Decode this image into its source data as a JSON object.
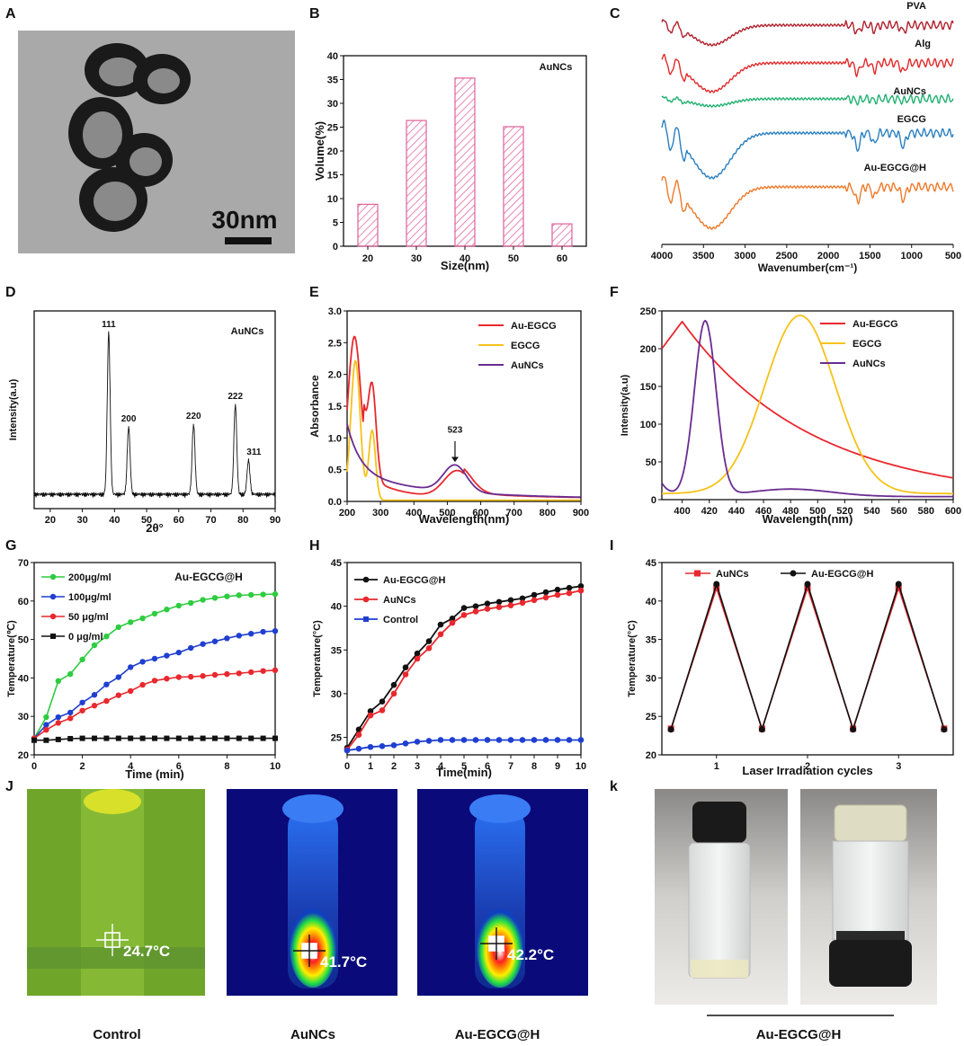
{
  "panel_letters": [
    "A",
    "B",
    "C",
    "D",
    "E",
    "F",
    "G",
    "H",
    "I",
    "J",
    "k"
  ],
  "colors": {
    "pink": "#e0609a",
    "red": "#e8282e",
    "yellow": "#f5c21b",
    "purple": "#6a2c91",
    "green": "#2ecc40",
    "blue": "#1f3fd0",
    "black": "#111111",
    "pva": "#b0202c",
    "alg": "#e02a2a",
    "ftir_green": "#20b070",
    "ftir_blue": "#2a7fc0",
    "orange": "#ee7a2a"
  },
  "panel_a": {
    "scalebar_label": "30nm"
  },
  "panel_b": {
    "type": "bar",
    "label": "AuNCs",
    "categories": [
      "20",
      "30",
      "40",
      "50",
      "60"
    ],
    "values": [
      8.8,
      26.4,
      35.3,
      25.1,
      4.7
    ],
    "xlabel": "Size(nm)",
    "ylabel": "Volume(%)",
    "ylim": [
      0,
      40
    ],
    "yticks": [
      0,
      5,
      10,
      15,
      20,
      25,
      30,
      35,
      40
    ]
  },
  "panel_c": {
    "type": "line",
    "xlabel": "Wavenumber(cm⁻¹)",
    "xlim": [
      4000,
      500
    ],
    "xticks": [
      4000,
      3500,
      3000,
      2500,
      2000,
      1500,
      1000,
      500
    ],
    "series": [
      "PVA",
      "Alg",
      "AuNCs",
      "EGCG",
      "Au-EGCG@H"
    ]
  },
  "panel_d": {
    "type": "line",
    "label": "AuNCs",
    "xlabel": "2θ°",
    "ylabel": "Intensity(a.u)",
    "xlim": [
      15,
      90
    ],
    "xticks": [
      20,
      30,
      40,
      50,
      60,
      70,
      80,
      90
    ],
    "peaks": [
      {
        "x": 38.2,
        "label": "111"
      },
      {
        "x": 44.4,
        "label": "200"
      },
      {
        "x": 64.6,
        "label": "220"
      },
      {
        "x": 77.6,
        "label": "222"
      },
      {
        "x": 81.7,
        "label": "311"
      }
    ]
  },
  "panel_e": {
    "type": "line",
    "xlabel": "Wavelength(nm)",
    "ylabel": "Absorbance",
    "xlim": [
      200,
      900
    ],
    "ylim": [
      0,
      3.0
    ],
    "xticks": [
      200,
      300,
      400,
      500,
      600,
      700,
      800,
      900
    ],
    "yticks": [
      0.0,
      0.5,
      1.0,
      1.5,
      2.0,
      2.5,
      3.0
    ],
    "annotation": "523",
    "legend": [
      "Au-EGCG",
      "EGCG",
      "AuNCs"
    ]
  },
  "panel_f": {
    "type": "line",
    "xlabel": "Wavelength(nm)",
    "ylabel": "Intensity(a.u)",
    "xlim": [
      385,
      600
    ],
    "ylim": [
      0,
      250
    ],
    "xticks": [
      400,
      420,
      440,
      460,
      480,
      500,
      520,
      540,
      560,
      580,
      600
    ],
    "yticks": [
      0,
      50,
      100,
      150,
      200,
      250
    ],
    "legend": [
      "Au-EGCG",
      "EGCG",
      "AuNCs"
    ]
  },
  "panel_g": {
    "type": "line",
    "title": "Au-EGCG@H",
    "xlabel": "Time (min)",
    "ylabel": "Temperature(℃)",
    "xlim": [
      0,
      10
    ],
    "ylim": [
      20,
      70
    ],
    "xticks": [
      0,
      2,
      4,
      6,
      8,
      10
    ],
    "yticks": [
      20,
      30,
      40,
      50,
      60,
      70
    ],
    "x": [
      0,
      0.5,
      1,
      1.5,
      2,
      2.5,
      3,
      3.5,
      4,
      4.5,
      5,
      5.5,
      6,
      6.5,
      7,
      7.5,
      8,
      8.5,
      9,
      9.5,
      10
    ],
    "series": [
      {
        "name": "200μg/ml",
        "color": "#2ecc40",
        "values": [
          24.3,
          29.8,
          39.2,
          41.0,
          44.8,
          48.5,
          50.8,
          53.2,
          54.5,
          55.5,
          56.7,
          57.8,
          58.8,
          59.5,
          60.3,
          60.8,
          61.2,
          61.5,
          61.6,
          61.7,
          61.8
        ]
      },
      {
        "name": "100μg/ml",
        "color": "#1f3fd0",
        "values": [
          24.3,
          27.8,
          29.8,
          31.0,
          33.6,
          35.6,
          38.3,
          40.2,
          42.8,
          44.2,
          45.0,
          45.8,
          46.6,
          47.8,
          48.8,
          49.5,
          50.3,
          51.0,
          51.5,
          52.0,
          52.2
        ]
      },
      {
        "name": "50  μg/ml",
        "color": "#e8282e",
        "values": [
          24.3,
          26.5,
          28.3,
          29.5,
          31.5,
          32.8,
          34.0,
          35.5,
          36.6,
          38.2,
          39.3,
          39.8,
          40.2,
          40.3,
          40.5,
          40.8,
          41.0,
          41.2,
          41.5,
          41.8,
          42.0
        ]
      },
      {
        "name": "0    μg/ml",
        "color": "#111111",
        "values": [
          23.8,
          23.8,
          24.0,
          24.2,
          24.3,
          24.3,
          24.3,
          24.3,
          24.3,
          24.3,
          24.3,
          24.3,
          24.3,
          24.3,
          24.3,
          24.3,
          24.3,
          24.3,
          24.3,
          24.3,
          24.3
        ]
      }
    ]
  },
  "panel_h": {
    "type": "line",
    "xlabel": "Time(min)",
    "ylabel": "Temperature(°C)",
    "xlim": [
      0,
      10
    ],
    "ylim": [
      23,
      45
    ],
    "xticks": [
      0,
      1,
      2,
      3,
      4,
      5,
      6,
      7,
      8,
      9,
      10
    ],
    "yticks": [
      25,
      30,
      35,
      40,
      45
    ],
    "x": [
      0,
      0.5,
      1,
      1.5,
      2,
      2.5,
      3,
      3.5,
      4,
      4.5,
      5,
      5.5,
      6,
      6.5,
      7,
      7.5,
      8,
      8.5,
      9,
      9.5,
      10
    ],
    "series": [
      {
        "name": "Au-EGCG@H",
        "color": "#111111",
        "values": [
          23.8,
          25.9,
          28.0,
          29.1,
          31.0,
          33.0,
          34.6,
          36.0,
          37.9,
          38.6,
          39.8,
          40.0,
          40.3,
          40.5,
          40.7,
          40.9,
          41.3,
          41.6,
          41.9,
          42.1,
          42.3
        ]
      },
      {
        "name": "AuNCs",
        "color": "#e8282e",
        "values": [
          23.6,
          25.3,
          27.5,
          28.1,
          30.0,
          32.2,
          34.0,
          35.2,
          36.8,
          38.1,
          39.0,
          39.4,
          39.7,
          39.9,
          40.1,
          40.4,
          40.7,
          41.0,
          41.3,
          41.5,
          41.8
        ]
      },
      {
        "name": "Control",
        "color": "#1f3fd0",
        "values": [
          23.5,
          23.7,
          23.9,
          24.0,
          24.1,
          24.3,
          24.5,
          24.6,
          24.7,
          24.7,
          24.7,
          24.7,
          24.7,
          24.7,
          24.7,
          24.7,
          24.7,
          24.7,
          24.7,
          24.7,
          24.7
        ]
      }
    ]
  },
  "panel_i": {
    "type": "line",
    "xlabel": "Laser Irradiation cycles",
    "ylabel": "Temperature(°C)",
    "xlim": [
      0.4,
      3.6
    ],
    "ylim": [
      20,
      45
    ],
    "xticks": [
      1,
      2,
      3
    ],
    "yticks": [
      20,
      25,
      30,
      35,
      40,
      45
    ],
    "x": [
      0.5,
      1,
      1.5,
      2,
      2.5,
      3,
      3.5
    ],
    "series": [
      {
        "name": "AuNCs",
        "color": "#e8282e",
        "values": [
          23.4,
          41.7,
          23.4,
          41.7,
          23.4,
          41.7,
          23.4
        ]
      },
      {
        "name": "Au-EGCG@H",
        "color": "#111111",
        "values": [
          23.3,
          42.2,
          23.3,
          42.2,
          23.3,
          42.2,
          23.3
        ]
      }
    ]
  },
  "panel_j": {
    "images": [
      {
        "label": "Control",
        "temp": "24.7°C"
      },
      {
        "label": "AuNCs",
        "temp": "41.7°C"
      },
      {
        "label": "Au-EGCG@H",
        "temp": "42.2°C"
      }
    ]
  },
  "panel_k": {
    "label": "Au-EGCG@H"
  }
}
